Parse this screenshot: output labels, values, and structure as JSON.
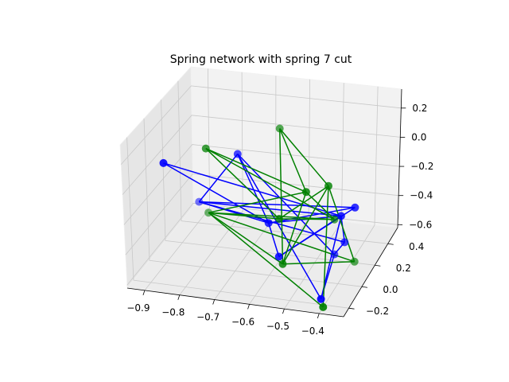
{
  "chart_data": {
    "type": "scatter",
    "projection": "3d",
    "title": "Spring network with spring 7 cut",
    "xlabel": "",
    "ylabel": "",
    "zlabel": "",
    "xlim": [
      -0.95,
      -0.33
    ],
    "ylim": [
      -0.28,
      0.55
    ],
    "zlim": [
      -0.62,
      0.33
    ],
    "x_ticks": [
      "−0.9",
      "−0.8",
      "−0.7",
      "−0.6",
      "−0.5",
      "−0.4"
    ],
    "y_ticks": [
      "−0.2",
      "0.0",
      "0.2",
      "0.4"
    ],
    "z_ticks": [
      "−0.6",
      "−0.4",
      "−0.2",
      "0.0",
      "0.2"
    ],
    "grid": true,
    "legend": "none",
    "series": [
      {
        "color": "#0000ff",
        "nodes": [
          {
            "x": -0.92,
            "y": 0.5,
            "z": -0.55
          },
          {
            "x": -0.72,
            "y": 0.15,
            "z": 0.05
          },
          {
            "x": -0.6,
            "y": 0.0,
            "z": -0.28
          },
          {
            "x": -0.4,
            "y": 0.1,
            "z": -0.42
          },
          {
            "x": -0.38,
            "y": -0.05,
            "z": -0.15
          },
          {
            "x": -0.45,
            "y": 0.2,
            "z": -0.58
          },
          {
            "x": -0.55,
            "y": -0.1,
            "z": -0.42
          },
          {
            "x": -0.4,
            "y": -0.25,
            "z": -0.55
          },
          {
            "x": -0.85,
            "y": -0.2,
            "z": 0.18
          },
          {
            "x": -0.35,
            "y": 0.0,
            "z": -0.12
          }
        ],
        "edges": [
          [
            0,
            1
          ],
          [
            0,
            2
          ],
          [
            0,
            3
          ],
          [
            0,
            4
          ],
          [
            1,
            2
          ],
          [
            1,
            5
          ],
          [
            2,
            4
          ],
          [
            2,
            6
          ],
          [
            3,
            4
          ],
          [
            3,
            5
          ],
          [
            4,
            6
          ],
          [
            4,
            7
          ],
          [
            5,
            7
          ],
          [
            8,
            2
          ],
          [
            8,
            4
          ],
          [
            9,
            0
          ],
          [
            9,
            2
          ],
          [
            9,
            6
          ],
          [
            1,
            7
          ]
        ]
      },
      {
        "color": "#008000",
        "nodes": [
          {
            "x": -0.88,
            "y": 0.45,
            "z": -0.58
          },
          {
            "x": -0.8,
            "y": 0.1,
            "z": 0.1
          },
          {
            "x": -0.62,
            "y": 0.25,
            "z": 0.18
          },
          {
            "x": -0.48,
            "y": -0.05,
            "z": -0.02
          },
          {
            "x": -0.45,
            "y": 0.2,
            "z": -0.35
          },
          {
            "x": -0.4,
            "y": 0.25,
            "z": -0.65
          },
          {
            "x": -0.55,
            "y": -0.05,
            "z": -0.5
          },
          {
            "x": -0.4,
            "y": -0.22,
            "z": -0.62
          },
          {
            "x": -0.58,
            "y": 0.05,
            "z": -0.28
          },
          {
            "x": -0.42,
            "y": -0.03,
            "z": 0.02
          }
        ],
        "edges": [
          [
            0,
            3
          ],
          [
            0,
            4
          ],
          [
            0,
            5
          ],
          [
            0,
            6
          ],
          [
            0,
            7
          ],
          [
            1,
            3
          ],
          [
            1,
            8
          ],
          [
            2,
            3
          ],
          [
            2,
            6
          ],
          [
            2,
            9
          ],
          [
            3,
            4
          ],
          [
            3,
            6
          ],
          [
            4,
            8
          ],
          [
            5,
            6
          ],
          [
            5,
            9
          ],
          [
            6,
            9
          ],
          [
            7,
            9
          ],
          [
            8,
            9
          ],
          [
            1,
            4
          ],
          [
            0,
            8
          ]
        ]
      }
    ]
  }
}
